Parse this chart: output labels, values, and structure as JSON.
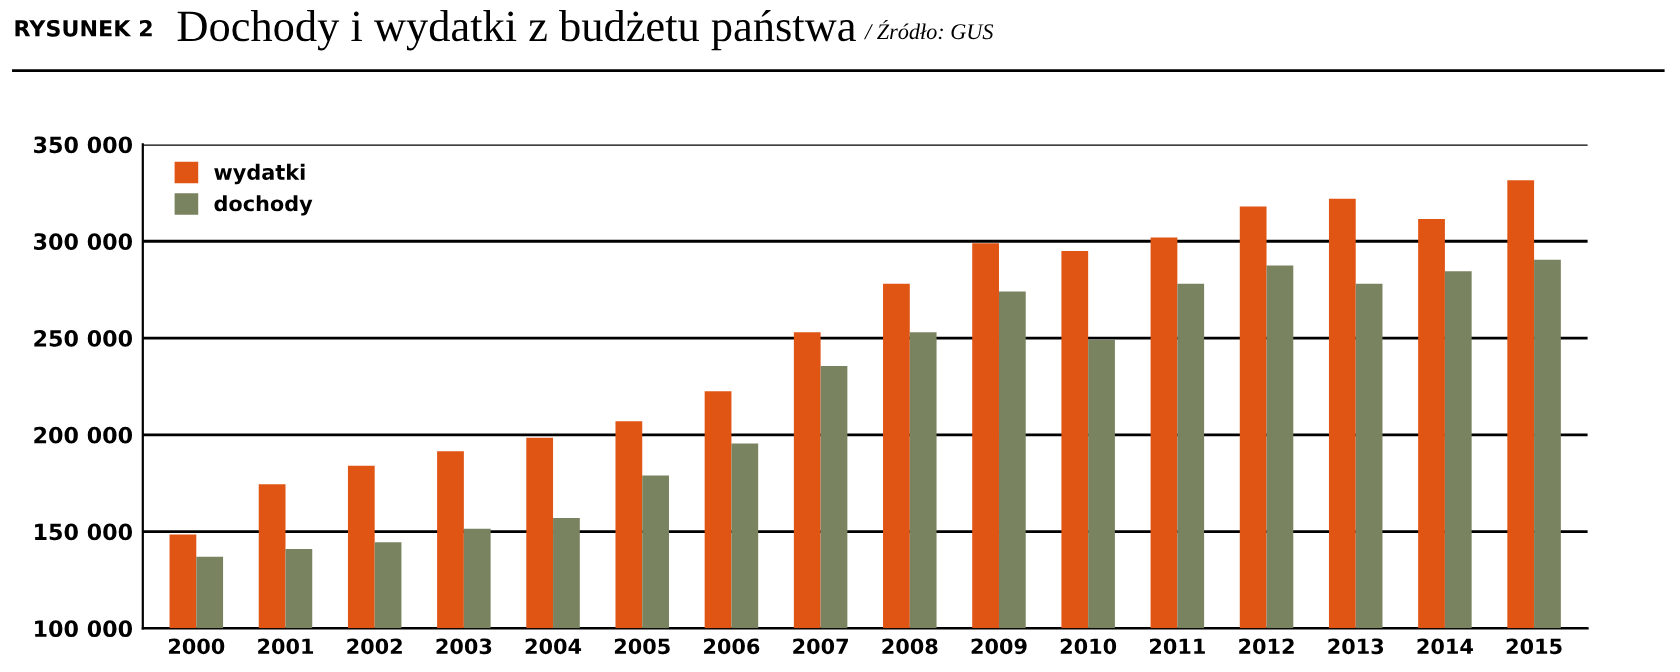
{
  "chart_data": {
    "type": "bar",
    "title": "Dochody i wydatki z budżetu państwa",
    "annotations": [
      "RYSUNEK 2",
      "/ Źródło: GUS"
    ],
    "categories": [
      "2000",
      "2001",
      "2002",
      "2003",
      "2004",
      "2005",
      "2006",
      "2007",
      "2008",
      "2009",
      "2010",
      "2011",
      "2012",
      "2013",
      "2014",
      "2015"
    ],
    "series": [
      {
        "name": "wydatki",
        "color": "#e05414",
        "values": [
          148500,
          174500,
          184000,
          191500,
          198500,
          207000,
          222500,
          253000,
          278000,
          299000,
          295000,
          302000,
          318000,
          322000,
          311500,
          331500
        ]
      },
      {
        "name": "dochody",
        "color": "#7a8360",
        "values": [
          137000,
          141000,
          144500,
          151500,
          157000,
          179000,
          195500,
          235500,
          253000,
          274000,
          249000,
          278000,
          287500,
          278000,
          284500,
          290500
        ]
      }
    ],
    "ylim": [
      100000,
      350000
    ],
    "yticks": [
      {
        "value": 100000,
        "label": "100 000"
      },
      {
        "value": 150000,
        "label": "150 000"
      },
      {
        "value": 200000,
        "label": "200 000"
      },
      {
        "value": 250000,
        "label": "250 000"
      },
      {
        "value": 300000,
        "label": "300 000"
      },
      {
        "value": 350000,
        "label": "350 000"
      }
    ],
    "grid": "y",
    "legend": "top left"
  }
}
